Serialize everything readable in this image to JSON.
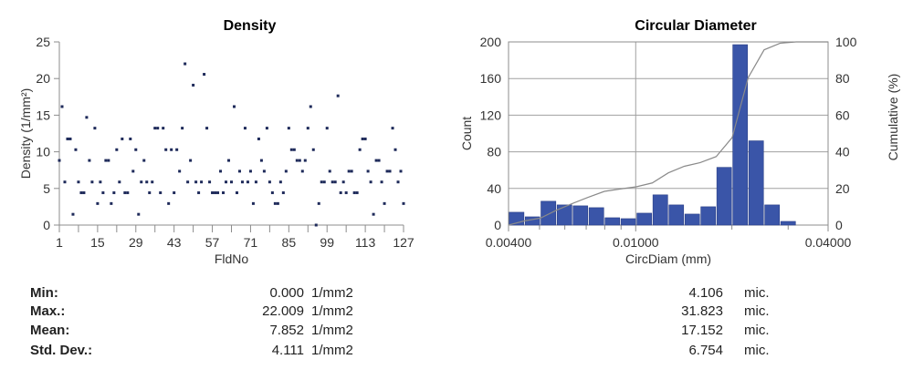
{
  "chart_data": [
    {
      "type": "scatter",
      "title": "Density",
      "xlabel": "FldNo",
      "ylabel": "Density (1/mm²)",
      "xlim": [
        1,
        127
      ],
      "ylim": [
        0,
        25
      ],
      "xticks": [
        1,
        15,
        29,
        43,
        57,
        71,
        85,
        99,
        113,
        127
      ],
      "yticks": [
        0,
        5,
        10,
        15,
        20,
        25
      ],
      "grid": false,
      "color": "#1e2a5a",
      "y": [
        8.82,
        16.17,
        5.88,
        11.76,
        11.76,
        1.47,
        10.29,
        5.88,
        4.41,
        4.41,
        14.7,
        8.82,
        5.88,
        13.23,
        2.94,
        5.88,
        4.41,
        8.82,
        8.82,
        2.94,
        4.41,
        10.29,
        5.88,
        11.76,
        4.41,
        4.41,
        11.76,
        7.35,
        10.29,
        1.47,
        5.88,
        8.82,
        5.88,
        4.41,
        5.88,
        13.23,
        13.23,
        4.41,
        13.23,
        10.29,
        2.94,
        10.29,
        4.41,
        10.29,
        7.35,
        13.23,
        22.01,
        5.88,
        8.82,
        19.1,
        5.88,
        4.41,
        5.88,
        20.58,
        13.23,
        5.88,
        4.41,
        4.41,
        4.41,
        7.35,
        4.41,
        5.88,
        8.82,
        5.88,
        16.17,
        4.41,
        7.35,
        5.88,
        13.23,
        5.88,
        7.35,
        2.94,
        5.88,
        11.76,
        8.82,
        7.35,
        13.23,
        5.88,
        4.41,
        2.94,
        2.94,
        5.88,
        4.41,
        7.35,
        13.23,
        10.29,
        10.29,
        8.82,
        8.82,
        7.35,
        8.82,
        13.23,
        16.17,
        10.29,
        0,
        2.94,
        5.88,
        5.88,
        13.23,
        7.35,
        5.88,
        5.88,
        17.64,
        4.41,
        5.88,
        4.41,
        7.35,
        7.35,
        4.41,
        4.41,
        10.29,
        11.76,
        11.76,
        7.35,
        5.88,
        1.47,
        8.82,
        8.82,
        5.88,
        2.94,
        7.35,
        7.35,
        13.23,
        10.29,
        5.88,
        7.35,
        2.94
      ]
    },
    {
      "type": "bar",
      "title": "Circular Diameter",
      "xlabel": "CircDiam (mm)",
      "ylabel": "Count",
      "y2label": "Cumulative (%)",
      "xscale": "log",
      "xlim": [
        0.004,
        0.04
      ],
      "ylim": [
        0,
        200
      ],
      "y2lim": [
        0,
        100
      ],
      "xticks": [
        "0.00400",
        "0.01000",
        "0.04000"
      ],
      "yticks": [
        0,
        40,
        80,
        120,
        160,
        200
      ],
      "y2ticks": [
        0,
        20,
        40,
        60,
        80,
        100
      ],
      "grid": true,
      "bar_color": "#3a55a8",
      "line_color": "#8a8a8a",
      "bin_edges": [
        0.004,
        0.00449,
        0.00503,
        0.00565,
        0.00634,
        0.00711,
        0.00798,
        0.00895,
        0.01004,
        0.01127,
        0.01265,
        0.01419,
        0.01592,
        0.01786,
        0.02004,
        0.02249,
        0.02523,
        0.02831,
        0.03177
      ],
      "counts": [
        14,
        9,
        26,
        22,
        21,
        19,
        8,
        7,
        13,
        33,
        22,
        12,
        20,
        63,
        197,
        92,
        22,
        4
      ],
      "cumulative_percent": [
        0,
        2.3,
        3.8,
        8.1,
        11.8,
        15.2,
        18.4,
        19.7,
        20.9,
        23.0,
        28.5,
        32.1,
        34.1,
        37.4,
        47.8,
        80.5,
        95.7,
        99.3,
        100
      ]
    }
  ],
  "stats": {
    "labels": [
      "Min:",
      "Max.:",
      "Mean:",
      "Std. Dev.:"
    ],
    "density_values": [
      "0.000",
      "22.009",
      "7.852",
      "4.111"
    ],
    "density_unit": "1/mm2",
    "diameter_values": [
      "4.106",
      "31.823",
      "17.152",
      "6.754"
    ],
    "diameter_unit": "mic."
  }
}
